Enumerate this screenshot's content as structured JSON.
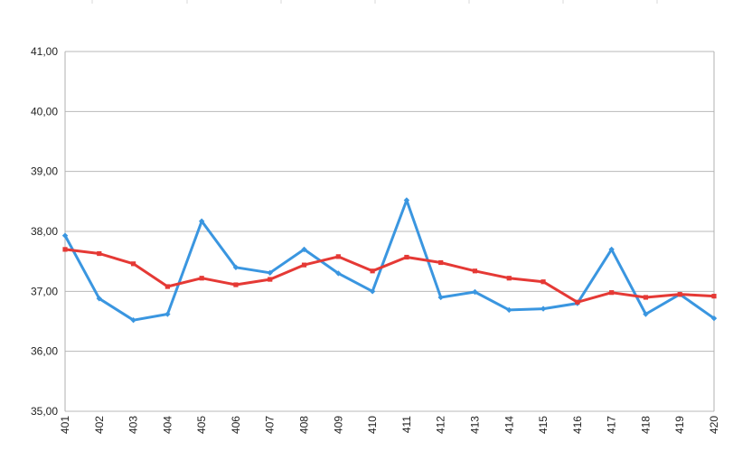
{
  "chart_data": {
    "type": "line",
    "title": "",
    "xlabel": "",
    "ylabel": "",
    "categories": [
      "401",
      "402",
      "403",
      "404",
      "405",
      "406",
      "407",
      "408",
      "409",
      "410",
      "411",
      "412",
      "413",
      "414",
      "415",
      "416",
      "417",
      "418",
      "419",
      "420"
    ],
    "ylim": [
      35,
      41
    ],
    "yticks": [
      35,
      36,
      37,
      38,
      39,
      40,
      41
    ],
    "ytick_labels": [
      "35,00",
      "36,00",
      "37,00",
      "38,00",
      "39,00",
      "40,00",
      "41,00"
    ],
    "grid": true,
    "legend": "none",
    "series": [
      {
        "color": "#3a96e0",
        "values": [
          37.93,
          36.88,
          36.52,
          36.62,
          38.17,
          37.4,
          37.31,
          37.7,
          37.3,
          37.0,
          38.52,
          36.9,
          36.99,
          36.69,
          36.71,
          36.8,
          37.7,
          36.62,
          36.95,
          36.55
        ]
      },
      {
        "color": "#e53935",
        "values": [
          37.7,
          37.63,
          37.46,
          37.08,
          37.22,
          37.11,
          37.2,
          37.44,
          37.58,
          37.34,
          37.57,
          37.48,
          37.34,
          37.22,
          37.16,
          36.82,
          36.98,
          36.9,
          36.95,
          36.92
        ]
      }
    ]
  }
}
